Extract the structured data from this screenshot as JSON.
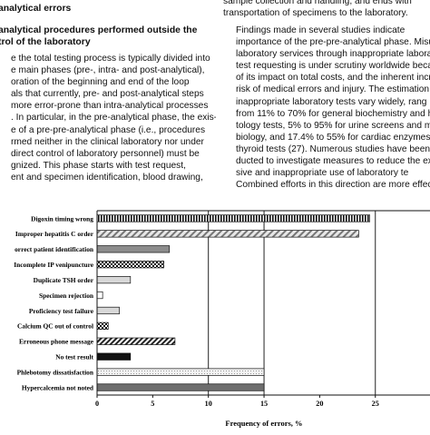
{
  "article": {
    "heading_1": "analytical errors",
    "heading_2_lines": [
      "analytical procedures performed outside the",
      "trol of the laboratory"
    ],
    "left_lines": [
      "e the total testing process is typically divided into",
      "e main phases (pre-, intra- and post-analytical),",
      "oration of the beginning and end of the loop",
      "als that currently, pre- and post-analytical steps",
      "more error-prone than intra-analytical processes",
      ". In particular, in the pre-analytical phase, the exis-",
      "e of a pre-pre-analytical phase (i.e., procedures",
      "rmed neither in the clinical laboratory nor under",
      "direct control of laboratory personnel) must be",
      "gnized. This phase starts with test request,",
      "ent and specimen identification, blood drawing,"
    ],
    "right_top_lines": [
      "sample collection and handling, and ends with",
      "transportation of specimens to the laboratory."
    ],
    "right_lines": [
      "Findings made in several studies indicate",
      "importance of the pre-pre-analytical phase. Misus",
      "laboratory services through inappropriate laborat",
      "test requesting is under scrutiny worldwide becau",
      "of its impact on total costs, and the inherent increa",
      "risk of medical errors and injury. The estimation",
      "inappropriate laboratory tests vary widely, rang",
      "from 11% to 70% for general biochemistry and he",
      "tology tests, 5% to 95% for urine screens and m",
      "biology, and 17.4% to 55% for cardiac enzymes a",
      "thyroid tests (27). Numerous studies have been",
      "ducted to investigate measures to reduce the ex",
      "sive and inappropriate use of laboratory te",
      "Combined efforts in this direction are more effec"
    ]
  },
  "chart_data": {
    "type": "bar",
    "orientation": "horizontal",
    "categories": [
      "Digoxin timing wrong",
      "Improper hepatitis C order",
      "Incorrect patient identification",
      "Incomplete IP venipuncture",
      "Duplicate TSH order",
      "Specimen rejection",
      "Proficiency test failure",
      "Calcium QC out of control",
      "Erroneous phone message",
      "No test result",
      "Phlebotomy dissatisfaction",
      "Hypercalcemia not noted"
    ],
    "category_labels": [
      "Digoxin timing wrong",
      "Improper hepatitis C order",
      "orrect patient identification",
      "Incomplete IP venipuncture",
      "Duplicate TSH order",
      "Specimen rejection",
      "Proficiency test failure",
      "Calcium QC out of control",
      "Erroneous phone message",
      "No test result",
      "Phlebotomy dissatisfaction",
      "Hypercalcemia not noted"
    ],
    "values": [
      24.5,
      23.5,
      6.5,
      6.0,
      3.0,
      0.5,
      2.0,
      1.0,
      7.0,
      3.0,
      15.0,
      15.0
    ],
    "patterns": [
      "vstripe",
      "dstripe-light",
      "solid-gray",
      "checker",
      "light",
      "white",
      "light",
      "checker",
      "dstripe-dark",
      "solid-black",
      "dots-light",
      "solid-midgray"
    ],
    "xlabel": "Frequency of errors, %",
    "ylabel": "",
    "title": "",
    "xlim": [
      0,
      30
    ],
    "xticks": [
      0,
      5,
      10,
      15,
      20,
      25
    ],
    "grid": "vertical at 10, 15, 25",
    "colors": {
      "bar_stroke": "#111111",
      "gray": "#8c8c8c",
      "midgray": "#6e6e6e",
      "light": "#d8d8d8",
      "black": "#111111"
    }
  }
}
